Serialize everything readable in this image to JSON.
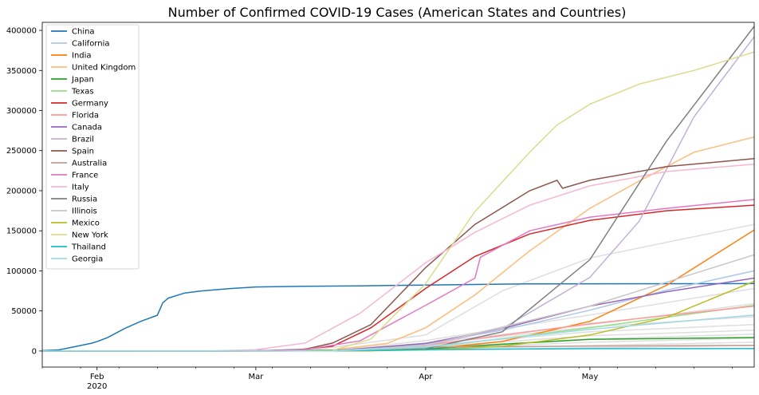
{
  "chart_data": {
    "type": "line",
    "title": "Number of Confirmed COVID-19 Cases (American States and Countries)",
    "xlabel": "",
    "ylabel": "",
    "x_range": [
      "2020-01-22",
      "2020-05-31"
    ],
    "ylim": [
      -20000,
      410000
    ],
    "x_ticks": [
      {
        "date": "2020-02-01",
        "label": "Feb",
        "sublabel": "2020"
      },
      {
        "date": "2020-03-01",
        "label": "Mar",
        "sublabel": ""
      },
      {
        "date": "2020-04-01",
        "label": "Apr",
        "sublabel": ""
      },
      {
        "date": "2020-05-01",
        "label": "May",
        "sublabel": ""
      }
    ],
    "y_ticks": [
      0,
      50000,
      100000,
      150000,
      200000,
      250000,
      300000,
      350000,
      400000
    ],
    "grid": false,
    "legend_position": "top-left",
    "series": [
      {
        "name": "China",
        "color": "#1f77b4",
        "points": [
          [
            "2020-01-22",
            548
          ],
          [
            "2020-01-25",
            1400
          ],
          [
            "2020-01-28",
            5500
          ],
          [
            "2020-01-31",
            9800
          ],
          [
            "2020-02-01",
            11800
          ],
          [
            "2020-02-03",
            17000
          ],
          [
            "2020-02-06",
            28000
          ],
          [
            "2020-02-09",
            37000
          ],
          [
            "2020-02-12",
            44600
          ],
          [
            "2020-02-13",
            60000
          ],
          [
            "2020-02-14",
            66000
          ],
          [
            "2020-02-17",
            72400
          ],
          [
            "2020-02-20",
            75000
          ],
          [
            "2020-02-25",
            77700
          ],
          [
            "2020-03-01",
            79900
          ],
          [
            "2020-03-10",
            80700
          ],
          [
            "2020-03-20",
            81200
          ],
          [
            "2020-04-01",
            82300
          ],
          [
            "2020-04-20",
            83800
          ],
          [
            "2020-05-31",
            84100
          ]
        ]
      },
      {
        "name": "California",
        "color": "#aec7e8",
        "points": [
          [
            "2020-01-22",
            0
          ],
          [
            "2020-03-10",
            150
          ],
          [
            "2020-03-20",
            1200
          ],
          [
            "2020-04-01",
            9000
          ],
          [
            "2020-04-15",
            26000
          ],
          [
            "2020-05-01",
            51000
          ],
          [
            "2020-05-15",
            76000
          ],
          [
            "2020-05-31",
            100000
          ]
        ]
      },
      {
        "name": "India",
        "color": "#ff7f0e",
        "points": [
          [
            "2020-01-22",
            0
          ],
          [
            "2020-03-20",
            250
          ],
          [
            "2020-04-01",
            1900
          ],
          [
            "2020-04-15",
            12000
          ],
          [
            "2020-05-01",
            37000
          ],
          [
            "2020-05-15",
            82000
          ],
          [
            "2020-05-31",
            151000
          ]
        ]
      },
      {
        "name": "United Kingdom",
        "color": "#ffbb78",
        "points": [
          [
            "2020-01-22",
            0
          ],
          [
            "2020-03-05",
            120
          ],
          [
            "2020-03-15",
            1400
          ],
          [
            "2020-03-25",
            9600
          ],
          [
            "2020-04-01",
            29000
          ],
          [
            "2020-04-10",
            70000
          ],
          [
            "2020-04-20",
            125000
          ],
          [
            "2020-05-01",
            178000
          ],
          [
            "2020-05-10",
            212000
          ],
          [
            "2020-05-20",
            248000
          ],
          [
            "2020-05-31",
            267000
          ]
        ]
      },
      {
        "name": "Japan",
        "color": "#2ca02c",
        "points": [
          [
            "2020-01-22",
            2
          ],
          [
            "2020-03-01",
            250
          ],
          [
            "2020-04-01",
            2400
          ],
          [
            "2020-04-15",
            8500
          ],
          [
            "2020-05-01",
            14500
          ],
          [
            "2020-05-31",
            16800
          ]
        ]
      },
      {
        "name": "Texas",
        "color": "#98df8a",
        "points": [
          [
            "2020-01-22",
            0
          ],
          [
            "2020-03-15",
            60
          ],
          [
            "2020-04-01",
            4000
          ],
          [
            "2020-05-01",
            29000
          ],
          [
            "2020-05-31",
            57000
          ]
        ]
      },
      {
        "name": "Germany",
        "color": "#d62728",
        "points": [
          [
            "2020-01-22",
            0
          ],
          [
            "2020-02-27",
            50
          ],
          [
            "2020-03-08",
            1000
          ],
          [
            "2020-03-15",
            6000
          ],
          [
            "2020-03-22",
            29000
          ],
          [
            "2020-04-01",
            78000
          ],
          [
            "2020-04-10",
            118000
          ],
          [
            "2020-04-20",
            146000
          ],
          [
            "2020-05-01",
            163000
          ],
          [
            "2020-05-15",
            175000
          ],
          [
            "2020-05-31",
            182000
          ]
        ]
      },
      {
        "name": "Florida",
        "color": "#ff9896",
        "points": [
          [
            "2020-01-22",
            0
          ],
          [
            "2020-03-15",
            100
          ],
          [
            "2020-04-01",
            7000
          ],
          [
            "2020-05-01",
            34000
          ],
          [
            "2020-05-31",
            56000
          ]
        ]
      },
      {
        "name": "Canada",
        "color": "#9467bd",
        "points": [
          [
            "2020-01-22",
            0
          ],
          [
            "2020-03-15",
            300
          ],
          [
            "2020-04-01",
            9500
          ],
          [
            "2020-04-15",
            28000
          ],
          [
            "2020-05-01",
            56000
          ],
          [
            "2020-05-15",
            74000
          ],
          [
            "2020-05-31",
            91000
          ]
        ]
      },
      {
        "name": "Brazil",
        "color": "#c5b0d5",
        "points": [
          [
            "2020-01-22",
            0
          ],
          [
            "2020-03-15",
            200
          ],
          [
            "2020-04-01",
            6800
          ],
          [
            "2020-04-15",
            28000
          ],
          [
            "2020-05-01",
            92000
          ],
          [
            "2020-05-10",
            162000
          ],
          [
            "2020-05-20",
            292000
          ],
          [
            "2020-05-31",
            392000
          ]
        ]
      },
      {
        "name": "Spain",
        "color": "#8c564b",
        "points": [
          [
            "2020-01-22",
            0
          ],
          [
            "2020-03-01",
            80
          ],
          [
            "2020-03-10",
            2300
          ],
          [
            "2020-03-15",
            10000
          ],
          [
            "2020-03-22",
            33000
          ],
          [
            "2020-04-01",
            104000
          ],
          [
            "2020-04-10",
            158000
          ],
          [
            "2020-04-20",
            200000
          ],
          [
            "2020-04-25",
            213000
          ],
          [
            "2020-04-26",
            203000
          ],
          [
            "2020-05-01",
            213000
          ],
          [
            "2020-05-15",
            230000
          ],
          [
            "2020-05-31",
            240000
          ]
        ]
      },
      {
        "name": "Australia",
        "color": "#c49c94",
        "points": [
          [
            "2020-01-22",
            0
          ],
          [
            "2020-03-15",
            300
          ],
          [
            "2020-04-01",
            5000
          ],
          [
            "2020-05-31",
            7200
          ]
        ]
      },
      {
        "name": "France",
        "color": "#e377c2",
        "points": [
          [
            "2020-01-22",
            0
          ],
          [
            "2020-03-01",
            130
          ],
          [
            "2020-03-10",
            1800
          ],
          [
            "2020-03-20",
            12600
          ],
          [
            "2020-04-01",
            57000
          ],
          [
            "2020-04-10",
            91000
          ],
          [
            "2020-04-11",
            117000
          ],
          [
            "2020-04-20",
            150000
          ],
          [
            "2020-05-01",
            167000
          ],
          [
            "2020-05-15",
            178000
          ],
          [
            "2020-05-31",
            189000
          ]
        ]
      },
      {
        "name": "Italy",
        "color": "#f7b6d2",
        "points": [
          [
            "2020-01-22",
            0
          ],
          [
            "2020-02-21",
            20
          ],
          [
            "2020-03-01",
            1700
          ],
          [
            "2020-03-10",
            10000
          ],
          [
            "2020-03-20",
            47000
          ],
          [
            "2020-04-01",
            110000
          ],
          [
            "2020-04-10",
            148000
          ],
          [
            "2020-04-20",
            182000
          ],
          [
            "2020-05-01",
            206000
          ],
          [
            "2020-05-15",
            224000
          ],
          [
            "2020-05-31",
            233000
          ]
        ]
      },
      {
        "name": "Russia",
        "color": "#7f7f7f",
        "points": [
          [
            "2020-01-22",
            0
          ],
          [
            "2020-03-20",
            250
          ],
          [
            "2020-04-01",
            2800
          ],
          [
            "2020-04-15",
            24000
          ],
          [
            "2020-05-01",
            114000
          ],
          [
            "2020-05-15",
            262000
          ],
          [
            "2020-05-31",
            405000
          ]
        ]
      },
      {
        "name": "Illinois",
        "color": "#c7c7c7",
        "points": [
          [
            "2020-01-22",
            0
          ],
          [
            "2020-03-15",
            100
          ],
          [
            "2020-04-01",
            7000
          ],
          [
            "2020-05-01",
            56000
          ],
          [
            "2020-05-31",
            120000
          ]
        ]
      },
      {
        "name": "Mexico",
        "color": "#bcbd22",
        "points": [
          [
            "2020-01-22",
            0
          ],
          [
            "2020-03-20",
            200
          ],
          [
            "2020-04-01",
            1400
          ],
          [
            "2020-04-15",
            6000
          ],
          [
            "2020-05-01",
            20000
          ],
          [
            "2020-05-15",
            42000
          ],
          [
            "2020-05-31",
            87000
          ]
        ]
      },
      {
        "name": "New York",
        "color": "#dbdb8d",
        "points": [
          [
            "2020-01-22",
            0
          ],
          [
            "2020-03-05",
            20
          ],
          [
            "2020-03-15",
            700
          ],
          [
            "2020-03-22",
            15000
          ],
          [
            "2020-04-01",
            84000
          ],
          [
            "2020-04-10",
            174000
          ],
          [
            "2020-04-20",
            248000
          ],
          [
            "2020-04-25",
            282000
          ],
          [
            "2020-05-01",
            308000
          ],
          [
            "2020-05-10",
            333000
          ],
          [
            "2020-05-20",
            350000
          ],
          [
            "2020-05-31",
            373000
          ]
        ]
      },
      {
        "name": "Thailand",
        "color": "#17becf",
        "points": [
          [
            "2020-01-22",
            4
          ],
          [
            "2020-03-15",
            100
          ],
          [
            "2020-04-01",
            1800
          ],
          [
            "2020-05-01",
            2950
          ],
          [
            "2020-05-31",
            3080
          ]
        ]
      },
      {
        "name": "Georgia",
        "color": "#9edae5",
        "points": [
          [
            "2020-01-22",
            0
          ],
          [
            "2020-03-15",
            100
          ],
          [
            "2020-04-01",
            5000
          ],
          [
            "2020-05-01",
            27000
          ],
          [
            "2020-05-31",
            45000
          ]
        ]
      }
    ],
    "background_series": [
      {
        "color": "#dedede",
        "points": [
          [
            "2020-01-22",
            0
          ],
          [
            "2020-03-10",
            100
          ],
          [
            "2020-04-01",
            20000
          ],
          [
            "2020-04-15",
            75000
          ],
          [
            "2020-05-01",
            116000
          ],
          [
            "2020-05-31",
            158000
          ]
        ]
      },
      {
        "color": "#dedede",
        "points": [
          [
            "2020-01-22",
            0
          ],
          [
            "2020-03-15",
            200
          ],
          [
            "2020-04-01",
            13000
          ],
          [
            "2020-05-01",
            45000
          ],
          [
            "2020-05-31",
            78000
          ]
        ]
      },
      {
        "color": "#dedede",
        "points": [
          [
            "2020-01-22",
            0
          ],
          [
            "2020-03-15",
            200
          ],
          [
            "2020-04-01",
            10000
          ],
          [
            "2020-05-01",
            33000
          ],
          [
            "2020-05-31",
            59000
          ]
        ]
      },
      {
        "color": "#dedede",
        "points": [
          [
            "2020-01-22",
            0
          ],
          [
            "2020-03-15",
            150
          ],
          [
            "2020-04-01",
            8000
          ],
          [
            "2020-05-01",
            30000
          ],
          [
            "2020-05-31",
            43000
          ]
        ]
      },
      {
        "color": "#dedede",
        "points": [
          [
            "2020-01-22",
            0
          ],
          [
            "2020-03-15",
            120
          ],
          [
            "2020-04-01",
            6500
          ],
          [
            "2020-05-01",
            24000
          ],
          [
            "2020-05-31",
            33000
          ]
        ]
      },
      {
        "color": "#dedede",
        "points": [
          [
            "2020-01-22",
            0
          ],
          [
            "2020-03-15",
            100
          ],
          [
            "2020-04-01",
            5000
          ],
          [
            "2020-05-01",
            19000
          ],
          [
            "2020-05-31",
            26000
          ]
        ]
      },
      {
        "color": "#dedede",
        "points": [
          [
            "2020-01-22",
            0
          ],
          [
            "2020-03-15",
            90
          ],
          [
            "2020-04-01",
            4000
          ],
          [
            "2020-05-01",
            15000
          ],
          [
            "2020-05-31",
            21000
          ]
        ]
      },
      {
        "color": "#dedede",
        "points": [
          [
            "2020-01-22",
            0
          ],
          [
            "2020-03-15",
            80
          ],
          [
            "2020-04-01",
            3000
          ],
          [
            "2020-05-01",
            11000
          ],
          [
            "2020-05-31",
            16000
          ]
        ]
      },
      {
        "color": "#dedede",
        "points": [
          [
            "2020-01-22",
            0
          ],
          [
            "2020-03-15",
            60
          ],
          [
            "2020-04-01",
            2000
          ],
          [
            "2020-05-01",
            7000
          ],
          [
            "2020-05-31",
            11000
          ]
        ]
      },
      {
        "color": "#dedede",
        "points": [
          [
            "2020-01-22",
            0
          ],
          [
            "2020-03-15",
            40
          ],
          [
            "2020-04-01",
            1200
          ],
          [
            "2020-05-01",
            4000
          ],
          [
            "2020-05-31",
            7000
          ]
        ]
      }
    ]
  }
}
